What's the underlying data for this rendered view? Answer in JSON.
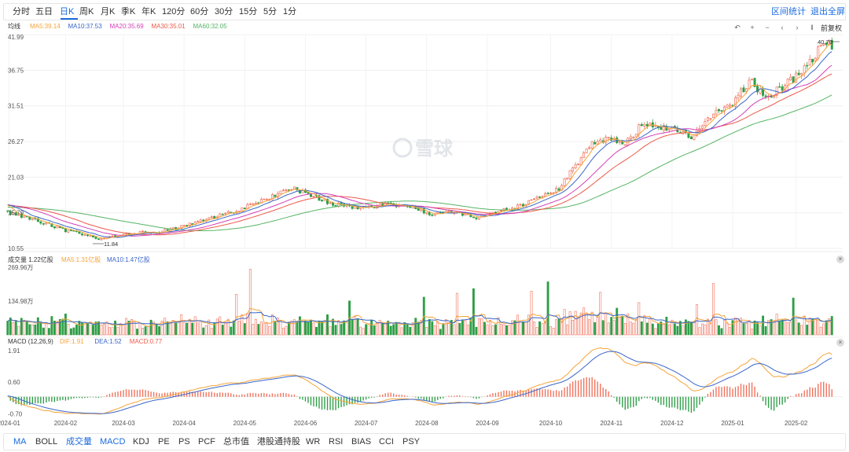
{
  "toolbar": {
    "timeframes": [
      "分时",
      "五日",
      "日K",
      "周K",
      "月K",
      "季K",
      "年K",
      "120分",
      "60分",
      "30分",
      "15分",
      "5分",
      "1分"
    ],
    "active_timeframe": "日K",
    "right_links": [
      "区间统计",
      "退出全屏"
    ]
  },
  "controls": {
    "fuquan_label": "前复权"
  },
  "indicators": {
    "items": [
      "MA",
      "BOLL",
      "成交量",
      "MACD",
      "KDJ",
      "PE",
      "PS",
      "PCF",
      "总市值",
      "港股通持股",
      "WR",
      "RSI",
      "BIAS",
      "CCI",
      "PSY"
    ],
    "active": [
      "MA",
      "成交量",
      "MACD"
    ]
  },
  "watermark": "雪球",
  "colors": {
    "up": "#f0705a",
    "down": "#2e9e46",
    "ma5": "#f5a338",
    "ma10": "#3a66c8",
    "ma20": "#d43fb7",
    "ma30": "#ec5a4a",
    "ma60": "#55b463",
    "accent": "#1a6be0"
  },
  "chart_data": [
    {
      "type": "candlestick",
      "panel": "main",
      "title_label": "均线",
      "legend": [
        {
          "name": "MA5",
          "value": "39.14",
          "color": "#f5a338"
        },
        {
          "name": "MA10",
          "value": "37.53",
          "color": "#3a66c8"
        },
        {
          "name": "MA20",
          "value": "35.69",
          "color": "#d43fb7"
        },
        {
          "name": "MA30",
          "value": "35.01",
          "color": "#ec5a4a"
        },
        {
          "name": "MA60",
          "value": "32.05",
          "color": "#55b463"
        }
      ],
      "y_ticks": [
        "41.99",
        "36.75",
        "31.51",
        "26.27",
        "21.03",
        "15.79",
        "10.55"
      ],
      "ylim": [
        10.55,
        41.99
      ],
      "annotations": {
        "max": "40.70",
        "min": "11.84"
      },
      "x_ticks": [
        "2024-01",
        "2024-02",
        "2024-03",
        "2024-04",
        "2024-05",
        "2024-06",
        "2024-07",
        "2024-08",
        "2024-09",
        "2024-10",
        "2024-11",
        "2024-12",
        "2025-01",
        "2025-02"
      ],
      "price_path": [
        [
          0,
          15.8
        ],
        [
          10,
          14.8
        ],
        [
          20,
          13.3
        ],
        [
          28,
          12.6
        ],
        [
          34,
          11.9
        ],
        [
          40,
          12.4
        ],
        [
          46,
          12.9
        ],
        [
          52,
          12.8
        ],
        [
          58,
          13.2
        ],
        [
          66,
          14.2
        ],
        [
          74,
          15.0
        ],
        [
          82,
          16.0
        ],
        [
          90,
          17.2
        ],
        [
          98,
          18.6
        ],
        [
          104,
          19.3
        ],
        [
          110,
          18.3
        ],
        [
          118,
          17.1
        ],
        [
          128,
          16.4
        ],
        [
          138,
          17.0
        ],
        [
          146,
          16.6
        ],
        [
          154,
          15.6
        ],
        [
          162,
          16.0
        ],
        [
          170,
          15.1
        ],
        [
          176,
          15.7
        ],
        [
          184,
          16.6
        ],
        [
          192,
          17.8
        ],
        [
          200,
          19.3
        ],
        [
          206,
          22.8
        ],
        [
          212,
          25.8
        ],
        [
          218,
          26.9
        ],
        [
          224,
          26.0
        ],
        [
          230,
          28.7
        ],
        [
          236,
          28.5
        ],
        [
          242,
          28.0
        ],
        [
          248,
          27.0
        ],
        [
          254,
          29.4
        ],
        [
          258,
          30.7
        ],
        [
          262,
          31.3
        ],
        [
          266,
          33.6
        ],
        [
          270,
          35.5
        ],
        [
          274,
          32.8
        ],
        [
          278,
          33.4
        ],
        [
          284,
          35.2
        ],
        [
          288,
          36.5
        ],
        [
          292,
          38.5
        ],
        [
          295,
          40.5
        ]
      ]
    },
    {
      "type": "bar",
      "panel": "volume",
      "title_label": "成交量",
      "current": "1.22亿股",
      "legend": [
        {
          "name": "MA5",
          "value": "1.31亿股",
          "color": "#f5a338"
        },
        {
          "name": "MA10",
          "value": "1.47亿股",
          "color": "#3a66c8"
        }
      ],
      "y_ticks": [
        "269.96万",
        "134.98万"
      ],
      "ylim": [
        0,
        269.96
      ]
    },
    {
      "type": "bar",
      "panel": "macd",
      "title_label": "MACD",
      "params": "(12,26,9)",
      "legend": [
        {
          "name": "DIF",
          "value": "1.91",
          "color": "#f5a338"
        },
        {
          "name": "DEA",
          "value": "1.52",
          "color": "#3a66c8"
        },
        {
          "name": "MACD",
          "value": "0.77",
          "color": "#ec5a4a"
        }
      ],
      "y_ticks": [
        "1.91",
        "0.60",
        "-0.70"
      ],
      "ylim": [
        -0.85,
        2.0
      ]
    }
  ]
}
